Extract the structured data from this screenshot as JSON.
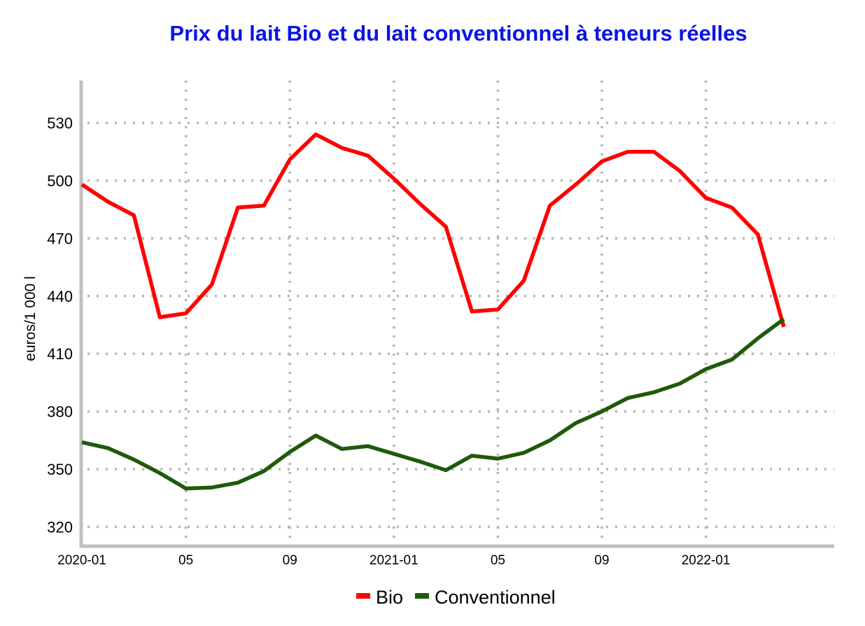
{
  "chart_data": {
    "type": "line",
    "title": "Prix du lait Bio et du lait conventionnel à teneurs réelles",
    "ylabel": "euros/1 000 l",
    "xlabel": "",
    "ylim": [
      310,
      552
    ],
    "yticks": [
      320,
      350,
      380,
      410,
      440,
      470,
      500,
      530
    ],
    "grid": true,
    "legend_position": "bottom",
    "colors": {
      "title": "#0a14e6",
      "axis": "#c0c0c0",
      "grid": "#b5b5b5"
    },
    "x_tick_labels": [
      {
        "index": 0,
        "label": "2020-01"
      },
      {
        "index": 4,
        "label": "05"
      },
      {
        "index": 8,
        "label": "09"
      },
      {
        "index": 12,
        "label": "2021-01"
      },
      {
        "index": 16,
        "label": "05"
      },
      {
        "index": 20,
        "label": "09"
      },
      {
        "index": 24,
        "label": "2022-01"
      }
    ],
    "x": [
      "2020-01",
      "2020-02",
      "2020-03",
      "2020-04",
      "2020-05",
      "2020-06",
      "2020-07",
      "2020-08",
      "2020-09",
      "2020-10",
      "2020-11",
      "2020-12",
      "2021-01",
      "2021-02",
      "2021-03",
      "2021-04",
      "2021-05",
      "2021-06",
      "2021-07",
      "2021-08",
      "2021-09",
      "2021-10",
      "2021-11",
      "2021-12",
      "2022-01",
      "2022-02",
      "2022-03",
      "2022-04"
    ],
    "series": [
      {
        "name": "Bio",
        "color": "#ff0000",
        "values": [
          498,
          489,
          482,
          429,
          431,
          446,
          486,
          487,
          511,
          524,
          517,
          513,
          501,
          488,
          476,
          432,
          433,
          448,
          487,
          498,
          510,
          515,
          515,
          505,
          491,
          486,
          472,
          424
        ]
      },
      {
        "name": "Conventionnel",
        "color": "#1f5a0a",
        "values": [
          364,
          361,
          355,
          348,
          340,
          340.5,
          343,
          349,
          359,
          367.5,
          360.5,
          362,
          358,
          354,
          349.5,
          357,
          355.5,
          358.5,
          365,
          374,
          380,
          387,
          390,
          394.5,
          402,
          407,
          418,
          428
        ]
      }
    ]
  }
}
